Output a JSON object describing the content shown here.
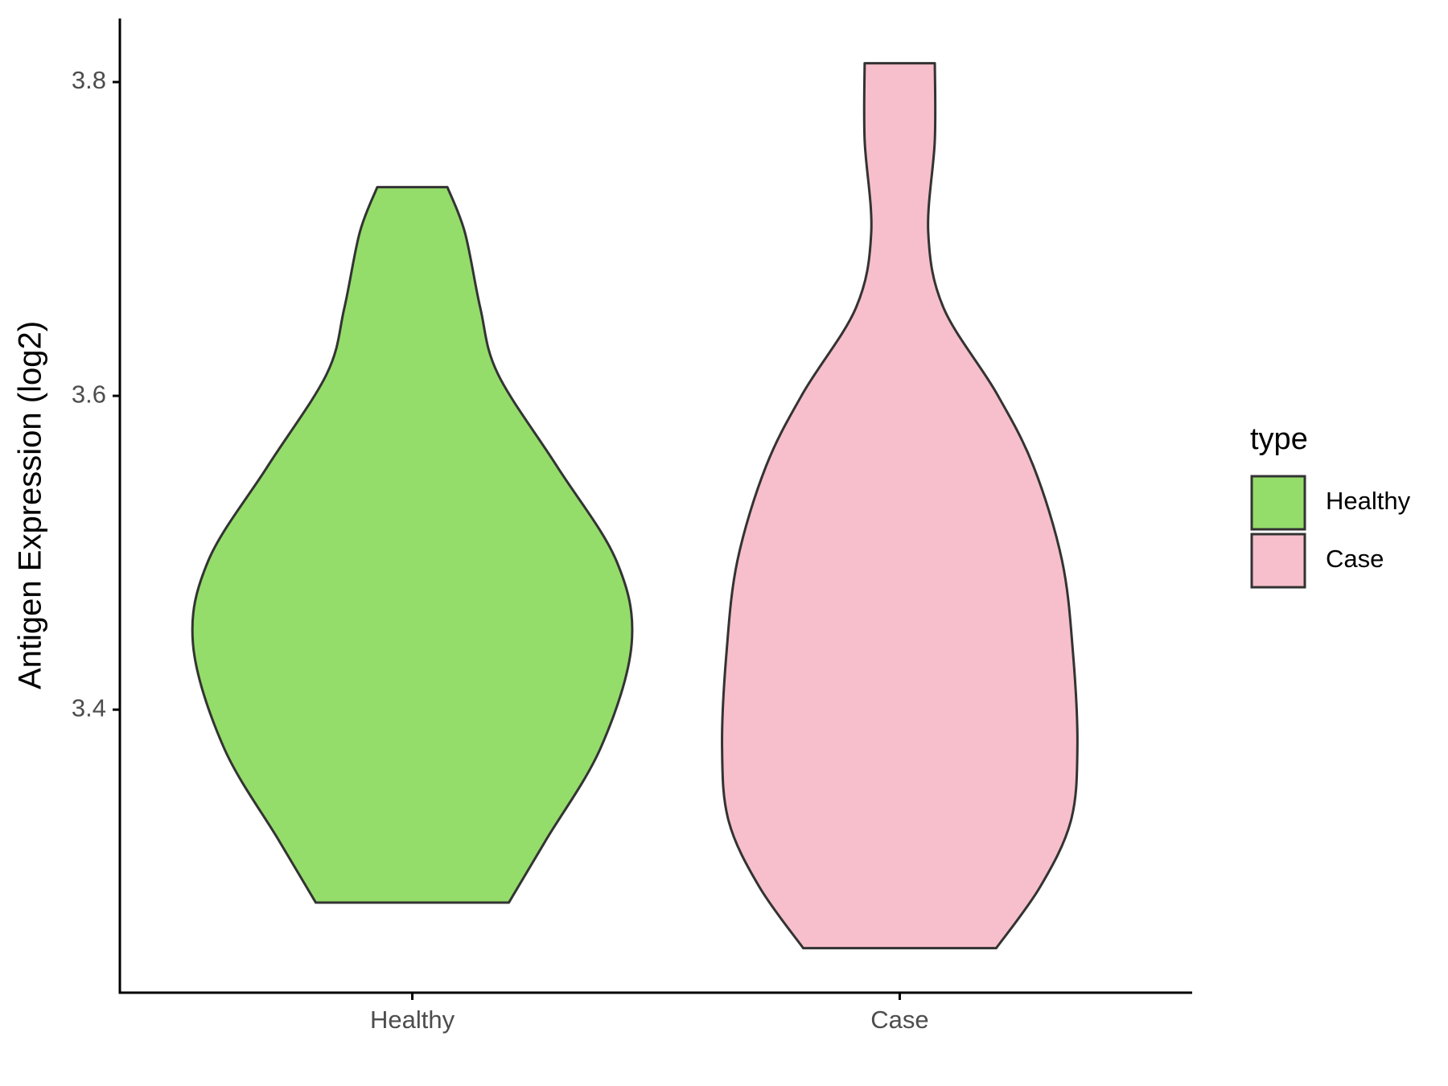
{
  "chart_data": {
    "type": "violin",
    "y_label": "Antigen Expression (log2)",
    "categories": [
      "Healthy",
      "Case"
    ],
    "legend_title": "type",
    "series": [
      {
        "name": "Healthy",
        "color": "#94dd6a",
        "y": [
          3.277,
          3.317,
          3.376,
          3.442,
          3.495,
          3.555,
          3.614,
          3.656,
          3.704,
          3.733
        ],
        "width": [
          0.44,
          0.61,
          0.86,
          1.0,
          0.93,
          0.66,
          0.39,
          0.31,
          0.24,
          0.16
        ]
      },
      {
        "name": "Case",
        "color": "#f7bfcb",
        "y": [
          3.248,
          3.287,
          3.329,
          3.376,
          3.436,
          3.495,
          3.555,
          3.602,
          3.656,
          3.704,
          3.763,
          3.812
        ],
        "width": [
          0.44,
          0.64,
          0.78,
          0.81,
          0.79,
          0.74,
          0.61,
          0.44,
          0.2,
          0.13,
          0.16,
          0.16
        ]
      }
    ],
    "ylim": [
      3.2196,
      3.8405
    ],
    "yticks": [
      3.4,
      3.6,
      3.8
    ]
  }
}
